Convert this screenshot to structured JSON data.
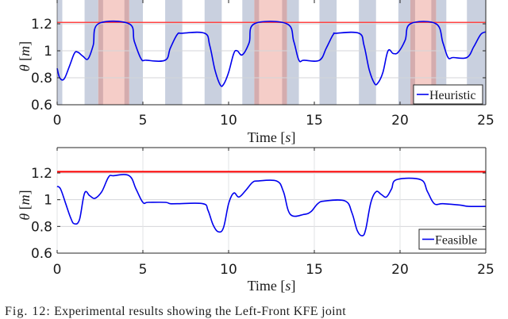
{
  "chart_data": [
    {
      "type": "line",
      "title": "",
      "xlabel": "Time [s]",
      "ylabel": "θ [m]",
      "xlim": [
        0,
        25
      ],
      "ylim": [
        0.6,
        1.25
      ],
      "xticks": [
        0,
        5,
        10,
        15,
        20,
        25
      ],
      "yticks": [
        0.6,
        0.8,
        1,
        1.2
      ],
      "ytick_labels": [
        "0.6",
        "0.8",
        "1",
        "1.2"
      ],
      "grid": true,
      "legend": {
        "position": "lower-right",
        "entries": [
          "Heuristic"
        ]
      },
      "limit_line": {
        "y": 1.21,
        "color": "#ff4444"
      },
      "shaded_regions": {
        "blue": [
          [
            0,
            0.3
          ],
          [
            1.6,
            2.4
          ],
          [
            4.2,
            5.0
          ],
          [
            6.3,
            7.3
          ],
          [
            8.6,
            9.6
          ],
          [
            10.8,
            11.5
          ],
          [
            13.4,
            14.1
          ],
          [
            15.3,
            16.3
          ],
          [
            17.6,
            18.6
          ],
          [
            19.9,
            20.6
          ],
          [
            22.1,
            22.7
          ],
          [
            23.9,
            25
          ]
        ],
        "red": [
          [
            2.4,
            4.2
          ],
          [
            11.5,
            13.4
          ],
          [
            20.6,
            22.1
          ]
        ]
      },
      "series": [
        {
          "name": "Heuristic",
          "color": "#0000ee",
          "x": [
            0,
            0.15,
            0.4,
            0.7,
            1.0,
            1.2,
            1.5,
            1.8,
            2.1,
            2.4,
            4.2,
            4.5,
            4.9,
            5.2,
            6.3,
            6.6,
            7.0,
            7.3,
            8.6,
            8.9,
            9.2,
            9.5,
            9.7,
            10.0,
            10.3,
            10.5,
            10.8,
            11.2,
            11.5,
            13.4,
            13.8,
            14.1,
            14.4,
            15.3,
            15.7,
            16.1,
            16.3,
            17.6,
            17.9,
            18.2,
            18.5,
            18.7,
            19.0,
            19.3,
            19.6,
            19.9,
            20.3,
            20.6,
            22.1,
            22.5,
            22.8,
            23.1,
            23.9,
            24.3,
            24.7,
            25.0
          ],
          "y": [
            0.87,
            0.8,
            0.79,
            0.88,
            0.98,
            0.99,
            0.96,
            0.94,
            1.04,
            1.2,
            1.2,
            1.07,
            0.94,
            0.93,
            0.93,
            1.02,
            1.12,
            1.13,
            1.13,
            1.04,
            0.86,
            0.75,
            0.75,
            0.84,
            0.98,
            1.0,
            0.97,
            1.06,
            1.2,
            1.2,
            1.07,
            0.93,
            0.93,
            0.93,
            1.02,
            1.12,
            1.13,
            1.13,
            1.04,
            0.86,
            0.76,
            0.76,
            0.84,
            1.0,
            0.98,
            0.99,
            1.08,
            1.2,
            1.2,
            1.06,
            0.95,
            0.95,
            0.95,
            1.03,
            1.12,
            1.14
          ]
        }
      ]
    },
    {
      "type": "line",
      "title": "",
      "xlabel": "Time [s]",
      "ylabel": "θ [m]",
      "xlim": [
        0,
        25
      ],
      "ylim": [
        0.6,
        1.4
      ],
      "xticks": [
        0,
        5,
        10,
        15,
        20,
        25
      ],
      "yticks": [
        0.6,
        0.8,
        1,
        1.2
      ],
      "ytick_labels": [
        "0.6",
        "0.8",
        "1",
        "1.2"
      ],
      "grid": true,
      "legend": {
        "position": "lower-right",
        "entries": [
          "Feasible"
        ]
      },
      "limit_line": {
        "y": 1.21,
        "color": "#ff0000"
      },
      "series": [
        {
          "name": "Feasible",
          "color": "#0000ee",
          "x": [
            0,
            0.2,
            0.5,
            0.8,
            1.0,
            1.3,
            1.6,
            1.9,
            2.2,
            2.6,
            3.0,
            3.3,
            4.2,
            4.6,
            5.0,
            5.3,
            6.3,
            6.6,
            7.0,
            8.5,
            8.8,
            9.1,
            9.4,
            9.7,
            10.0,
            10.3,
            10.6,
            11.0,
            11.4,
            11.7,
            12.8,
            13.2,
            13.6,
            14.4,
            14.8,
            15.2,
            15.6,
            16.8,
            17.2,
            17.5,
            17.8,
            18.0,
            18.3,
            18.6,
            18.9,
            19.2,
            19.5,
            19.8,
            21.2,
            21.6,
            22.0,
            22.5,
            23.5,
            24.0,
            25.0
          ],
          "y": [
            1.1,
            1.08,
            0.97,
            0.86,
            0.82,
            0.85,
            1.05,
            1.03,
            1.01,
            1.06,
            1.17,
            1.18,
            1.18,
            1.08,
            0.98,
            0.98,
            0.98,
            0.97,
            0.97,
            0.97,
            0.92,
            0.81,
            0.76,
            0.79,
            0.97,
            1.05,
            1.02,
            1.07,
            1.13,
            1.14,
            1.14,
            1.06,
            0.89,
            0.89,
            0.91,
            0.97,
            0.99,
            0.99,
            0.9,
            0.77,
            0.73,
            0.78,
            0.98,
            1.06,
            1.04,
            1.02,
            1.08,
            1.15,
            1.15,
            1.06,
            0.97,
            0.97,
            0.96,
            0.95,
            0.95
          ]
        }
      ]
    }
  ],
  "caption": {
    "label": "Fig. 12:",
    "text": "Experimental results showing the Left-Front KFE joint"
  }
}
